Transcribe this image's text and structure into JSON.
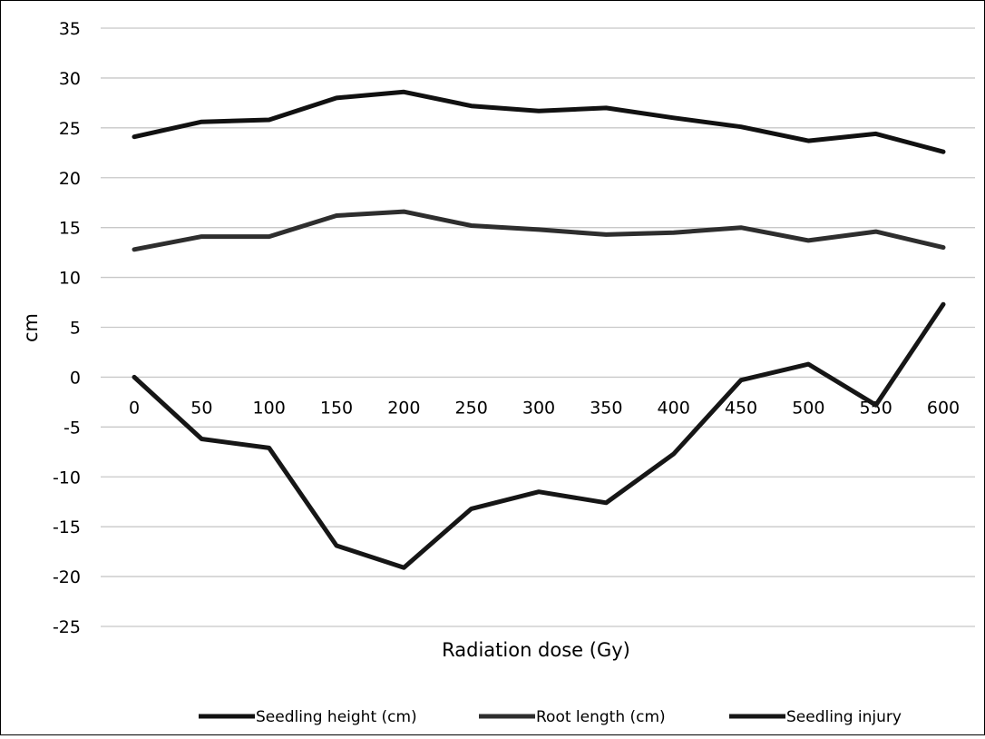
{
  "chart_data": {
    "type": "line",
    "title": "",
    "xlabel": "Radiation dose (Gy)",
    "ylabel": "cm",
    "x": [
      "0",
      "50",
      "100",
      "150",
      "200",
      "250",
      "300",
      "350",
      "400",
      "450",
      "500",
      "550",
      "600"
    ],
    "ylim": [
      -25,
      35
    ],
    "y_ticks": [
      35,
      30,
      25,
      20,
      15,
      10,
      5,
      0,
      -5,
      -10,
      -15,
      -20,
      -25
    ],
    "grid": true,
    "legend_position": "bottom",
    "series": [
      {
        "name": "Seedling height (cm)",
        "color": "#111111",
        "values": [
          24.1,
          25.6,
          25.8,
          28.0,
          28.6,
          27.2,
          26.7,
          27.0,
          26.0,
          25.1,
          23.7,
          24.4,
          22.6
        ]
      },
      {
        "name": "Root length (cm)",
        "color": "#2e2e2e",
        "values": [
          12.8,
          14.1,
          14.1,
          16.2,
          16.6,
          15.2,
          14.8,
          14.3,
          14.5,
          15.0,
          13.7,
          14.6,
          13.0
        ]
      },
      {
        "name": "Seedling injury",
        "color": "#161616",
        "values": [
          0,
          -6.2,
          -7.1,
          -16.9,
          -19.1,
          -13.2,
          -11.5,
          -12.6,
          -7.7,
          -0.3,
          1.3,
          -2.8,
          7.3
        ]
      }
    ]
  }
}
